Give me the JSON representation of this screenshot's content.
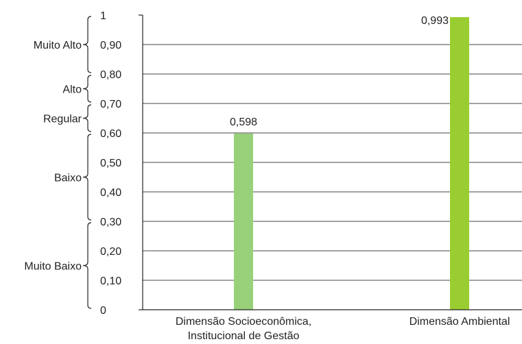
{
  "chart_data": {
    "type": "bar",
    "categories": [
      [
        "Dimensão Socioeconômica,",
        "Institucional de Gestão"
      ],
      [
        "Dimensão Ambiental"
      ]
    ],
    "values": [
      0.598,
      0.993
    ],
    "value_labels": [
      "0,598",
      "0,993"
    ],
    "colors": [
      "#98d17a",
      "#9acd32"
    ],
    "ylim": [
      0,
      1
    ],
    "yticks": [
      {
        "value": 0,
        "label": "0"
      },
      {
        "value": 0.1,
        "label": "0,10"
      },
      {
        "value": 0.2,
        "label": "0,20"
      },
      {
        "value": 0.3,
        "label": "0,30"
      },
      {
        "value": 0.4,
        "label": "0,40"
      },
      {
        "value": 0.5,
        "label": "0,50"
      },
      {
        "value": 0.6,
        "label": "0,60"
      },
      {
        "value": 0.7,
        "label": "0,70"
      },
      {
        "value": 0.8,
        "label": "0,80"
      },
      {
        "value": 0.9,
        "label": "0,90"
      },
      {
        "value": 1.0,
        "label": "1"
      }
    ],
    "ranges": [
      {
        "label": "Muito Baixo",
        "from": 0,
        "to": 0.3
      },
      {
        "label": "Baixo",
        "from": 0.3,
        "to": 0.6
      },
      {
        "label": "Regular",
        "from": 0.6,
        "to": 0.7
      },
      {
        "label": "Alto",
        "from": 0.7,
        "to": 0.8
      },
      {
        "label": "Muito Alto",
        "from": 0.8,
        "to": 1.0
      }
    ],
    "grid": true,
    "axis_color": "#222222",
    "grid_color": "#444444"
  }
}
